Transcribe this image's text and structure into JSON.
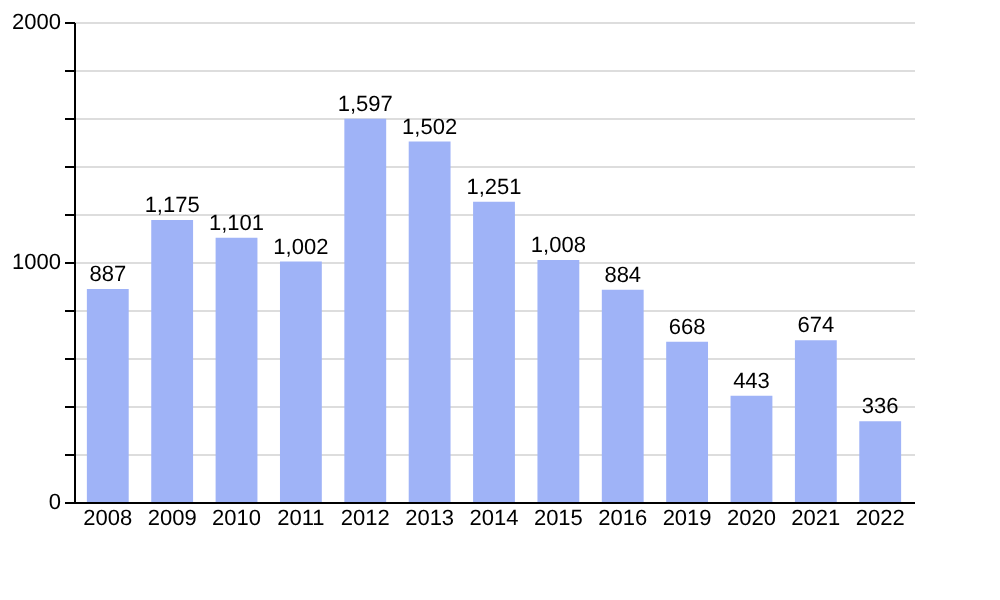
{
  "chart_data": {
    "type": "bar",
    "categories": [
      "2008",
      "2009",
      "2010",
      "2011",
      "2012",
      "2013",
      "2014",
      "2015",
      "2016",
      "2019",
      "2020",
      "2021",
      "2022"
    ],
    "values": [
      887,
      1175,
      1101,
      1002,
      1597,
      1502,
      1251,
      1008,
      884,
      668,
      443,
      674,
      336
    ],
    "value_labels": [
      "887",
      "1,175",
      "1,101",
      "1,002",
      "1,597",
      "1,502",
      "1,251",
      "1,008",
      "884",
      "668",
      "443",
      "674",
      "336"
    ],
    "color": "#9fb3f7",
    "ylim": [
      0,
      2000
    ],
    "yticks": [
      0,
      {
        "value": 200,
        "label": null
      },
      {
        "value": 400,
        "label": null
      },
      {
        "value": 600,
        "label": null
      },
      {
        "value": 800,
        "label": null
      },
      1000,
      {
        "value": 1200,
        "label": null
      },
      {
        "value": 1400,
        "label": null
      },
      {
        "value": 1600,
        "label": null
      },
      {
        "value": 1800,
        "label": null
      },
      2000
    ],
    "grid": "y"
  }
}
